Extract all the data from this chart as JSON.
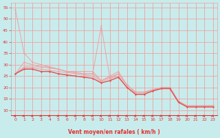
{
  "background_color": "#c8ecec",
  "grid_color": "#f0a0a0",
  "line_color_dark": "#e05050",
  "line_color_light": "#f0a0a0",
  "xlabel": "Vent moyen/en rafales ( km/h )",
  "xlabel_color": "#e03030",
  "tick_color": "#e03030",
  "arrow_color": "#e03030",
  "ylim": [
    8,
    57
  ],
  "xlim": [
    -0.5,
    23.5
  ],
  "yticks": [
    10,
    15,
    20,
    25,
    30,
    35,
    40,
    45,
    50,
    55
  ],
  "xticks": [
    0,
    1,
    2,
    3,
    4,
    5,
    6,
    7,
    8,
    9,
    10,
    11,
    12,
    13,
    14,
    15,
    16,
    17,
    18,
    19,
    20,
    21,
    22,
    23
  ],
  "lines_light": [
    {
      "x": [
        0,
        1,
        2,
        3,
        4,
        5,
        6,
        7,
        8,
        9,
        10,
        11,
        12,
        13,
        14,
        15,
        16,
        17,
        18,
        19,
        20,
        21,
        22,
        23
      ],
      "y": [
        54,
        35,
        31,
        30,
        29,
        28,
        27,
        26.5,
        26,
        26,
        47,
        24,
        26,
        21,
        18,
        18,
        19,
        20,
        20,
        14,
        12,
        12,
        12,
        12
      ]
    },
    {
      "x": [
        0,
        1,
        2,
        3,
        4,
        5,
        6,
        7,
        8,
        9,
        10,
        11,
        12,
        13,
        14,
        15,
        16,
        17,
        18,
        19,
        20,
        21,
        22,
        23
      ],
      "y": [
        26,
        31,
        30,
        29,
        29,
        28,
        27,
        27,
        27,
        27,
        23,
        25,
        27,
        21,
        18,
        18,
        19,
        20,
        20,
        14,
        12,
        12,
        12,
        12
      ]
    },
    {
      "x": [
        0,
        1,
        2,
        3,
        4,
        5,
        6,
        7,
        8,
        9,
        10,
        11,
        12,
        13,
        14,
        15,
        16,
        17,
        18,
        19,
        20,
        21,
        22,
        23
      ],
      "y": [
        26,
        29,
        29,
        29,
        28.5,
        28,
        27,
        26.5,
        26,
        26,
        23,
        24.5,
        26,
        21,
        18,
        18,
        19,
        20,
        20,
        14,
        12,
        12,
        12,
        12
      ]
    },
    {
      "x": [
        0,
        1,
        2,
        3,
        4,
        5,
        6,
        7,
        8,
        9,
        10,
        11,
        12,
        13,
        14,
        15,
        16,
        17,
        18,
        19,
        20,
        21,
        22,
        23
      ],
      "y": [
        26,
        28.5,
        28.5,
        28,
        27.5,
        27,
        26.5,
        26,
        25.5,
        25,
        22.5,
        24,
        25,
        20,
        17.5,
        17.5,
        18.5,
        19.5,
        19.5,
        13.5,
        11.5,
        11.5,
        11.5,
        11.5
      ]
    }
  ],
  "line_dark": {
    "x": [
      0,
      1,
      2,
      3,
      4,
      5,
      6,
      7,
      8,
      9,
      10,
      11,
      12,
      13,
      14,
      15,
      16,
      17,
      18,
      19,
      20,
      21,
      22,
      23
    ],
    "y": [
      26,
      28,
      28,
      27,
      27,
      26,
      25.5,
      25,
      24.5,
      24,
      22,
      23,
      24.5,
      20,
      17,
      17,
      18.5,
      19.5,
      19.5,
      13.5,
      11.5,
      11.5,
      11.5,
      11.5
    ]
  }
}
